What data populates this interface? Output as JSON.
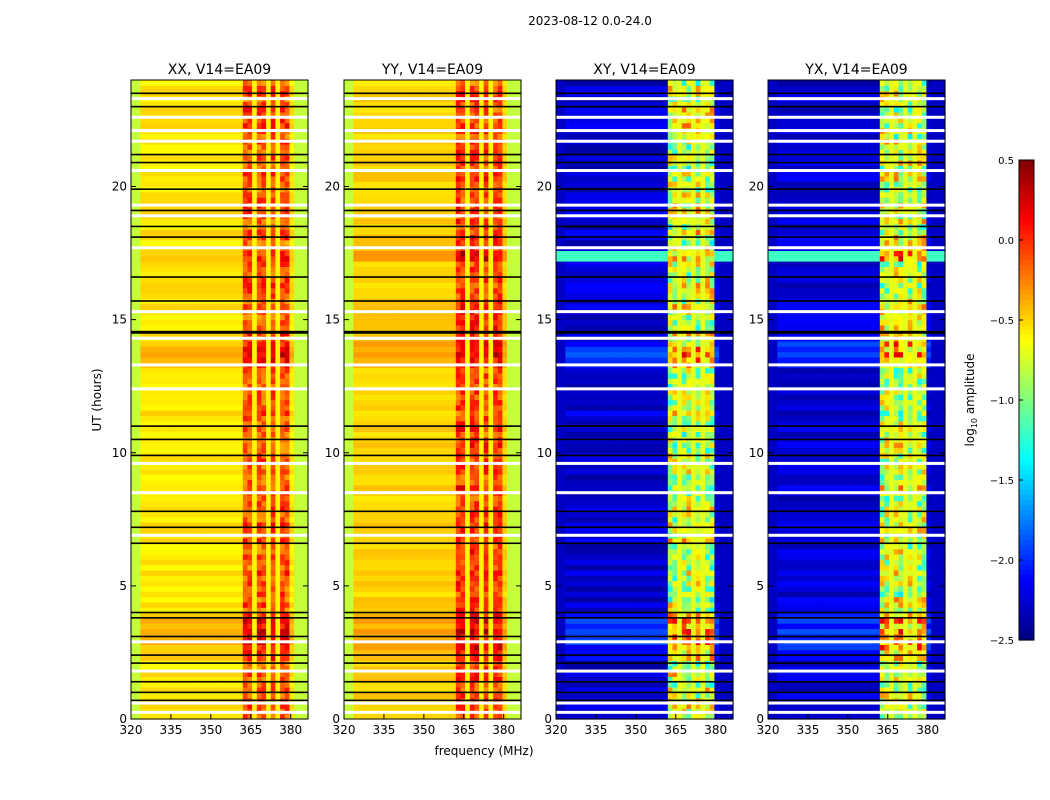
{
  "chart_data": {
    "type": "heatmap",
    "title": "2023-08-12 0.0-24.0",
    "xlabel": "frequency (MHz)",
    "ylabel": "UT (hours)",
    "xlim": [
      320,
      386.5
    ],
    "ylim": [
      0,
      24
    ],
    "xticks": [
      "320",
      "335",
      "350",
      "365",
      "380"
    ],
    "xtick_values": [
      320,
      335,
      350,
      365,
      380
    ],
    "yticks": [
      "0",
      "5",
      "10",
      "15",
      "20"
    ],
    "ytick_values": [
      0,
      5,
      10,
      15,
      20
    ],
    "panels": [
      {
        "title": "XX, V14=EA09",
        "base": -0.55,
        "band_level": -0.1,
        "edge_level": -0.85
      },
      {
        "title": "YY, V14=EA09",
        "base": -0.5,
        "band_level": -0.05,
        "edge_level": -0.85
      },
      {
        "title": "XY, V14=EA09",
        "base": -2.25,
        "band_level": -0.8,
        "edge_level": -2.3
      },
      {
        "title": "YX, V14=EA09",
        "base": -2.25,
        "band_level": -0.8,
        "edge_level": -2.3
      }
    ],
    "rfi_band_mhz": [
      362,
      380
    ],
    "rfi_gaps_mhz": [
      366.5,
      371.5,
      375.5
    ],
    "flagged_times_white": [
      23.3,
      22.6,
      22.1,
      21.7,
      20.6,
      19.3,
      18.9,
      17.7,
      15.3,
      14.3,
      13.3,
      12.4,
      9.6,
      8.5,
      6.9,
      2.9,
      1.8,
      0.6,
      0.25
    ],
    "black_lines_times": [
      23.5,
      23.0,
      21.2,
      20.9,
      19.9,
      19.1,
      18.5,
      18.1,
      16.6,
      15.7,
      14.55,
      14.5,
      11.0,
      10.5,
      9.9,
      7.8,
      7.2,
      6.6,
      4.0,
      3.8,
      3.1,
      2.4,
      2.1,
      1.4,
      1.0,
      0.7
    ],
    "colorbar": {
      "label": "log10 amplitude",
      "range": [
        -2.5,
        0.5
      ],
      "ticks": [
        "0.5",
        "0.0",
        "−0.5",
        "−1.0",
        "−1.5",
        "−2.0",
        "−2.5"
      ],
      "tick_values": [
        0.5,
        0.0,
        -0.5,
        -1.0,
        -1.5,
        -2.0,
        -2.5
      ],
      "colormap": "jet"
    }
  }
}
